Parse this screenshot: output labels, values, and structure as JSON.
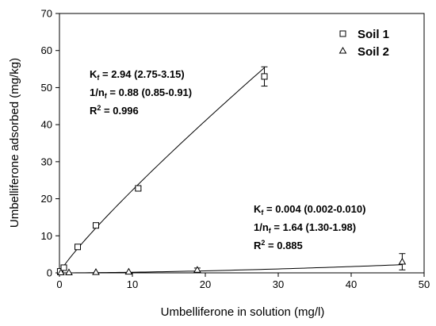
{
  "chart_data": {
    "type": "scatter",
    "xlabel": "Umbelliferone in solution (mg/l)",
    "ylabel": "Umbelliferone adsorbed (mg/kg)",
    "xlim": [
      0,
      50
    ],
    "ylim": [
      0,
      70
    ],
    "xticks": [
      0,
      10,
      20,
      30,
      40,
      50
    ],
    "yticks": [
      0,
      10,
      20,
      30,
      40,
      50,
      60,
      70
    ],
    "grid": false,
    "legend_position": "top-right",
    "series": [
      {
        "name": "Soil 1",
        "marker": "square",
        "points": [
          {
            "x": 0.1,
            "y": 0.4,
            "err": 0.0
          },
          {
            "x": 0.6,
            "y": 1.4,
            "err": 0.0
          },
          {
            "x": 2.5,
            "y": 7.0,
            "err": 0.4
          },
          {
            "x": 5.0,
            "y": 12.8,
            "err": 0.4
          },
          {
            "x": 10.8,
            "y": 22.8,
            "err": 0.4
          },
          {
            "x": 28.1,
            "y": 53.0,
            "err": 2.6
          }
        ],
        "fit": {
          "Kf": 2.94,
          "inv_nf": 0.88,
          "x_max": 28.1
        },
        "annotation": {
          "kf_text": "K",
          "kf_sub": "f",
          "kf_value": " = 2.94 (2.75-3.15)",
          "nf_text": "1/n",
          "nf_sub": "f",
          "nf_value": " = 0.88 (0.85-0.91)",
          "r2_text": "R",
          "r2_sup": "2",
          "r2_value": " = 0.996"
        }
      },
      {
        "name": "Soil 2",
        "marker": "triangle",
        "points": [
          {
            "x": 0.2,
            "y": 0.1,
            "err": 0.0
          },
          {
            "x": 1.3,
            "y": 0.1,
            "err": 0.0
          },
          {
            "x": 5.0,
            "y": 0.2,
            "err": 0.0
          },
          {
            "x": 9.5,
            "y": 0.3,
            "err": 0.0
          },
          {
            "x": 18.9,
            "y": 0.8,
            "err": 0.5
          },
          {
            "x": 47.0,
            "y": 3.0,
            "err": 2.2
          }
        ],
        "fit": {
          "Kf": 0.004,
          "inv_nf": 1.64,
          "x_max": 47.0
        },
        "annotation": {
          "kf_text": "K",
          "kf_sub": "f",
          "kf_value": " = 0.004 (0.002-0.010)",
          "nf_text": "1/n",
          "nf_sub": "f",
          "nf_value": " = 1.64 (1.30-1.98)",
          "r2_text": "R",
          "r2_sup": "2",
          "r2_value": " = 0.885"
        }
      }
    ]
  }
}
